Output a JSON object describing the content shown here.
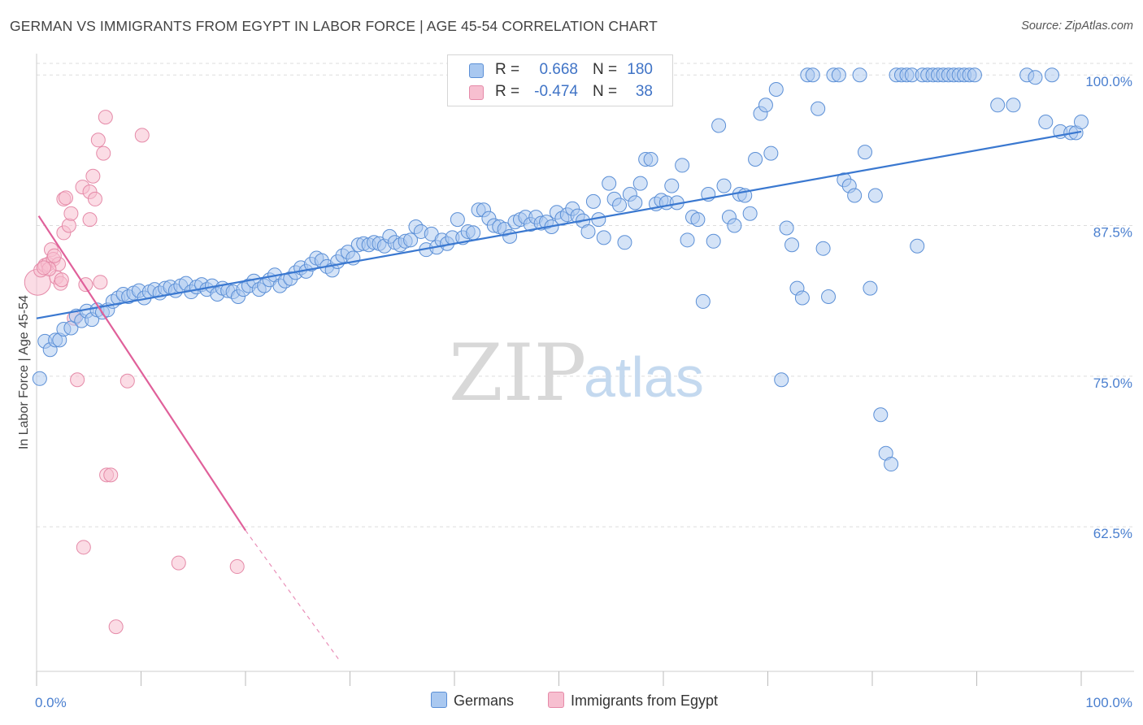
{
  "title": "GERMAN VS IMMIGRANTS FROM EGYPT IN LABOR FORCE | AGE 45-54 CORRELATION CHART",
  "source": "Source: ZipAtlas.com",
  "watermark": {
    "zip": "ZIP",
    "atlas": "atlas"
  },
  "legend": {
    "germans": {
      "r_label": "R =",
      "r_value": "0.668",
      "n_label": "N =",
      "n_value": "180"
    },
    "egypt": {
      "r_label": "R =",
      "r_value": "-0.474",
      "n_label": "N =",
      "n_value": "38"
    }
  },
  "bottom_legend": {
    "germans": "Germans",
    "egypt": "Immigrants from Egypt"
  },
  "colors": {
    "blue_fill": "#a9c8f0",
    "blue_stroke": "#5b8fd6",
    "blue_line": "#3a78d0",
    "pink_fill": "#f7bfd0",
    "pink_stroke": "#e58aa8",
    "pink_line": "#e0609a",
    "grid": "#dddddd",
    "axis_text": "#4a7fcf"
  },
  "chart_data": {
    "type": "scatter",
    "title": "GERMAN VS IMMIGRANTS FROM EGYPT IN LABOR FORCE | AGE 45-54 CORRELATION CHART",
    "xlabel": "",
    "ylabel": "In Labor Force | Age 45-54",
    "xlim": [
      0,
      100
    ],
    "ylim": [
      50.5,
      101.5
    ],
    "x_tick_labels": [
      "0.0%",
      "100.0%"
    ],
    "y_ticks": [
      62.5,
      75.0,
      87.5,
      100.0
    ],
    "y_tick_labels": [
      "62.5%",
      "75.0%",
      "87.5%",
      "100.0%"
    ],
    "grid": true,
    "legend_position": "top-center",
    "series": [
      {
        "name": "Germans",
        "trend": {
          "x": [
            0,
            100
          ],
          "y": [
            79.8,
            95.3
          ]
        },
        "points": [
          [
            0.3,
            74.8
          ],
          [
            0.8,
            77.9
          ],
          [
            1.3,
            77.2
          ],
          [
            1.8,
            78.0
          ],
          [
            2.2,
            78.0
          ],
          [
            2.6,
            78.9
          ],
          [
            3.3,
            79.0
          ],
          [
            3.8,
            80.0
          ],
          [
            4.3,
            79.6
          ],
          [
            4.8,
            80.4
          ],
          [
            5.3,
            79.7
          ],
          [
            5.8,
            80.5
          ],
          [
            6.3,
            80.3
          ],
          [
            6.8,
            80.5
          ],
          [
            7.3,
            81.2
          ],
          [
            7.8,
            81.5
          ],
          [
            8.3,
            81.8
          ],
          [
            8.8,
            81.6
          ],
          [
            9.3,
            81.9
          ],
          [
            9.8,
            82.1
          ],
          [
            10.3,
            81.5
          ],
          [
            10.8,
            82.0
          ],
          [
            11.3,
            82.2
          ],
          [
            11.8,
            81.9
          ],
          [
            12.3,
            82.3
          ],
          [
            12.8,
            82.4
          ],
          [
            13.3,
            82.1
          ],
          [
            13.8,
            82.5
          ],
          [
            14.3,
            82.7
          ],
          [
            14.8,
            82.0
          ],
          [
            15.3,
            82.4
          ],
          [
            15.8,
            82.6
          ],
          [
            16.3,
            82.2
          ],
          [
            16.8,
            82.5
          ],
          [
            17.3,
            81.8
          ],
          [
            17.8,
            82.3
          ],
          [
            18.3,
            82.1
          ],
          [
            18.8,
            82.0
          ],
          [
            19.3,
            81.6
          ],
          [
            19.8,
            82.2
          ],
          [
            20.3,
            82.5
          ],
          [
            20.8,
            82.9
          ],
          [
            21.3,
            82.2
          ],
          [
            21.8,
            82.5
          ],
          [
            22.3,
            83.0
          ],
          [
            22.8,
            83.4
          ],
          [
            23.3,
            82.5
          ],
          [
            23.8,
            82.9
          ],
          [
            24.3,
            83.1
          ],
          [
            24.8,
            83.6
          ],
          [
            25.3,
            84.0
          ],
          [
            25.8,
            83.7
          ],
          [
            26.3,
            84.3
          ],
          [
            26.8,
            84.8
          ],
          [
            27.3,
            84.6
          ],
          [
            27.8,
            84.1
          ],
          [
            28.3,
            83.8
          ],
          [
            28.8,
            84.5
          ],
          [
            29.3,
            85.0
          ],
          [
            29.8,
            85.3
          ],
          [
            30.3,
            84.8
          ],
          [
            30.8,
            85.9
          ],
          [
            31.3,
            86.0
          ],
          [
            31.8,
            85.9
          ],
          [
            32.3,
            86.1
          ],
          [
            32.8,
            86.0
          ],
          [
            33.3,
            85.8
          ],
          [
            33.8,
            86.6
          ],
          [
            34.3,
            86.1
          ],
          [
            34.8,
            85.9
          ],
          [
            35.3,
            86.2
          ],
          [
            35.8,
            86.3
          ],
          [
            36.3,
            87.4
          ],
          [
            36.8,
            87.0
          ],
          [
            37.3,
            85.5
          ],
          [
            37.8,
            86.8
          ],
          [
            38.3,
            85.7
          ],
          [
            38.8,
            86.3
          ],
          [
            39.3,
            86.0
          ],
          [
            39.8,
            86.5
          ],
          [
            40.3,
            88.0
          ],
          [
            40.8,
            86.5
          ],
          [
            41.3,
            87.0
          ],
          [
            41.8,
            86.9
          ],
          [
            42.3,
            88.8
          ],
          [
            42.8,
            88.8
          ],
          [
            43.3,
            88.1
          ],
          [
            43.8,
            87.5
          ],
          [
            44.3,
            87.4
          ],
          [
            44.8,
            87.2
          ],
          [
            45.3,
            86.6
          ],
          [
            45.8,
            87.8
          ],
          [
            46.3,
            88.0
          ],
          [
            46.8,
            88.2
          ],
          [
            47.3,
            87.6
          ],
          [
            47.8,
            88.2
          ],
          [
            48.3,
            87.7
          ],
          [
            48.8,
            87.8
          ],
          [
            49.3,
            87.4
          ],
          [
            49.8,
            88.6
          ],
          [
            50.3,
            88.1
          ],
          [
            50.8,
            88.4
          ],
          [
            51.3,
            88.9
          ],
          [
            51.8,
            88.3
          ],
          [
            52.3,
            87.9
          ],
          [
            52.8,
            87.0
          ],
          [
            53.3,
            89.5
          ],
          [
            53.8,
            88.0
          ],
          [
            54.3,
            86.5
          ],
          [
            54.8,
            91.0
          ],
          [
            55.3,
            89.7
          ],
          [
            55.8,
            89.2
          ],
          [
            56.3,
            86.1
          ],
          [
            56.8,
            90.1
          ],
          [
            57.3,
            89.4
          ],
          [
            57.8,
            91.0
          ],
          [
            58.3,
            93.0
          ],
          [
            58.8,
            93.0
          ],
          [
            59.3,
            89.3
          ],
          [
            59.8,
            89.6
          ],
          [
            60.3,
            89.4
          ],
          [
            60.8,
            90.8
          ],
          [
            61.3,
            89.4
          ],
          [
            61.8,
            92.5
          ],
          [
            62.3,
            86.3
          ],
          [
            62.8,
            88.2
          ],
          [
            63.3,
            88.0
          ],
          [
            63.8,
            81.2
          ],
          [
            64.3,
            90.1
          ],
          [
            64.8,
            86.2
          ],
          [
            65.3,
            95.8
          ],
          [
            65.8,
            90.8
          ],
          [
            66.3,
            88.2
          ],
          [
            66.8,
            87.5
          ],
          [
            67.3,
            90.1
          ],
          [
            67.8,
            90.0
          ],
          [
            68.3,
            88.5
          ],
          [
            68.8,
            93.0
          ],
          [
            69.3,
            96.8
          ],
          [
            69.8,
            97.5
          ],
          [
            70.3,
            93.5
          ],
          [
            70.8,
            98.8
          ],
          [
            71.3,
            74.7
          ],
          [
            71.8,
            87.3
          ],
          [
            72.3,
            85.9
          ],
          [
            72.8,
            82.3
          ],
          [
            73.3,
            81.5
          ],
          [
            73.8,
            100.0
          ],
          [
            74.3,
            100.0
          ],
          [
            74.8,
            97.2
          ],
          [
            75.3,
            85.6
          ],
          [
            75.8,
            81.6
          ],
          [
            76.3,
            100.0
          ],
          [
            76.8,
            100.0
          ],
          [
            77.3,
            91.3
          ],
          [
            77.8,
            90.8
          ],
          [
            78.3,
            90.0
          ],
          [
            78.8,
            100.0
          ],
          [
            79.3,
            93.6
          ],
          [
            79.8,
            82.3
          ],
          [
            80.3,
            90.0
          ],
          [
            80.8,
            71.8
          ],
          [
            81.3,
            68.6
          ],
          [
            81.8,
            67.7
          ],
          [
            82.3,
            100.0
          ],
          [
            82.8,
            100.0
          ],
          [
            83.3,
            100.0
          ],
          [
            83.8,
            100.0
          ],
          [
            84.3,
            85.8
          ],
          [
            84.8,
            100.0
          ],
          [
            85.3,
            100.0
          ],
          [
            85.8,
            100.0
          ],
          [
            86.3,
            100.0
          ],
          [
            86.8,
            100.0
          ],
          [
            87.3,
            100.0
          ],
          [
            87.8,
            100.0
          ],
          [
            88.3,
            100.0
          ],
          [
            88.8,
            100.0
          ],
          [
            89.3,
            100.0
          ],
          [
            89.8,
            100.0
          ],
          [
            92.0,
            97.5
          ],
          [
            93.5,
            97.5
          ],
          [
            94.8,
            100.0
          ],
          [
            95.6,
            99.8
          ],
          [
            96.6,
            96.1
          ],
          [
            97.2,
            100.0
          ],
          [
            98.0,
            95.3
          ],
          [
            99.0,
            95.2
          ],
          [
            99.5,
            95.2
          ],
          [
            100.0,
            96.1
          ]
        ]
      },
      {
        "name": "Immigrants from Egypt",
        "trend": {
          "x": [
            0.2,
            20
          ],
          "y": [
            88.3,
            62.2
          ]
        },
        "trend_extension": {
          "x": [
            20,
            29
          ],
          "y": [
            62.2,
            51.4
          ]
        },
        "points": [
          [
            0.1,
            82.8
          ],
          [
            0.4,
            83.8
          ],
          [
            0.8,
            84.2
          ],
          [
            1.1,
            84.3
          ],
          [
            1.4,
            85.5
          ],
          [
            1.6,
            84.7
          ],
          [
            1.9,
            83.2
          ],
          [
            2.1,
            84.3
          ],
          [
            2.3,
            82.7
          ],
          [
            2.6,
            86.9
          ],
          [
            2.6,
            89.7
          ],
          [
            2.8,
            89.8
          ],
          [
            3.1,
            87.5
          ],
          [
            3.3,
            88.5
          ],
          [
            3.6,
            79.8
          ],
          [
            3.9,
            74.7
          ],
          [
            4.4,
            90.7
          ],
          [
            4.7,
            82.6
          ],
          [
            5.1,
            88.0
          ],
          [
            5.1,
            90.3
          ],
          [
            5.4,
            91.6
          ],
          [
            5.6,
            89.7
          ],
          [
            5.9,
            94.6
          ],
          [
            6.1,
            82.8
          ],
          [
            6.4,
            93.5
          ],
          [
            6.6,
            96.5
          ],
          [
            6.7,
            66.8
          ],
          [
            7.1,
            66.8
          ],
          [
            4.5,
            60.8
          ],
          [
            7.6,
            54.2
          ],
          [
            8.7,
            74.6
          ],
          [
            10.1,
            95.0
          ],
          [
            13.6,
            59.5
          ],
          [
            19.2,
            59.2
          ],
          [
            1.2,
            83.9
          ],
          [
            1.7,
            85.0
          ],
          [
            2.4,
            83.0
          ],
          [
            0.7,
            84.0
          ]
        ]
      }
    ]
  }
}
